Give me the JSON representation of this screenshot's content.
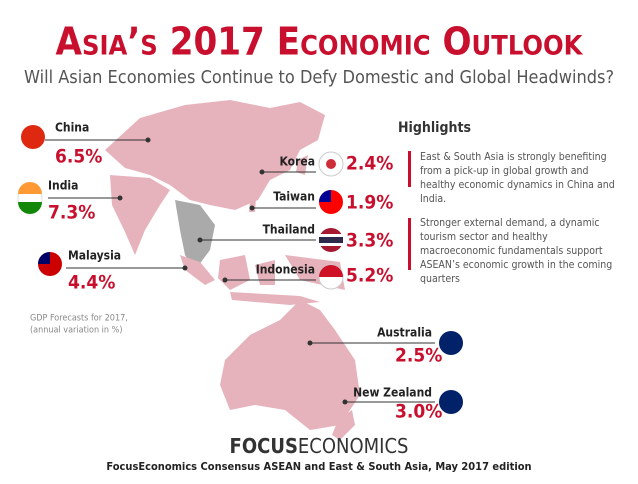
{
  "header": {
    "title": "Asia’s 2017 Economic Outlook",
    "subtitle": "Will Asian Economies Continue to Defy Domestic and Global Headwinds?"
  },
  "countries": [
    {
      "name": "China",
      "value": "6.5%"
    },
    {
      "name": "India",
      "value": "7.3%"
    },
    {
      "name": "Malaysia",
      "value": "4.4%"
    },
    {
      "name": "Korea",
      "value": "2.4%"
    },
    {
      "name": "Taiwan",
      "value": "1.9%"
    },
    {
      "name": "Thailand",
      "value": "3.3%"
    },
    {
      "name": "Indonesia",
      "value": "5.2%"
    },
    {
      "name": "Australia",
      "value": "2.5%"
    },
    {
      "name": "New Zealand",
      "value": "3.0%"
    }
  ],
  "highlights": {
    "title": "Highlights",
    "items": [
      "East & South Asia is strongly benefiting from a pick-up in global growth and healthy economic dynamics in China and India.",
      "Stronger external demand, a dynamic tourism sector and healthy macroeconomic fundamentals support ASEAN’s economic growth in the coming quarters"
    ]
  },
  "note": [
    "GDP Forecasts for 2017,",
    "(annual variation in %)"
  ],
  "footer": {
    "brand_bold": "FOCUS",
    "brand_rest": "ECONOMICS",
    "source": "FocusEconomics Consensus ASEAN and East & South Asia, May 2017 edition"
  }
}
